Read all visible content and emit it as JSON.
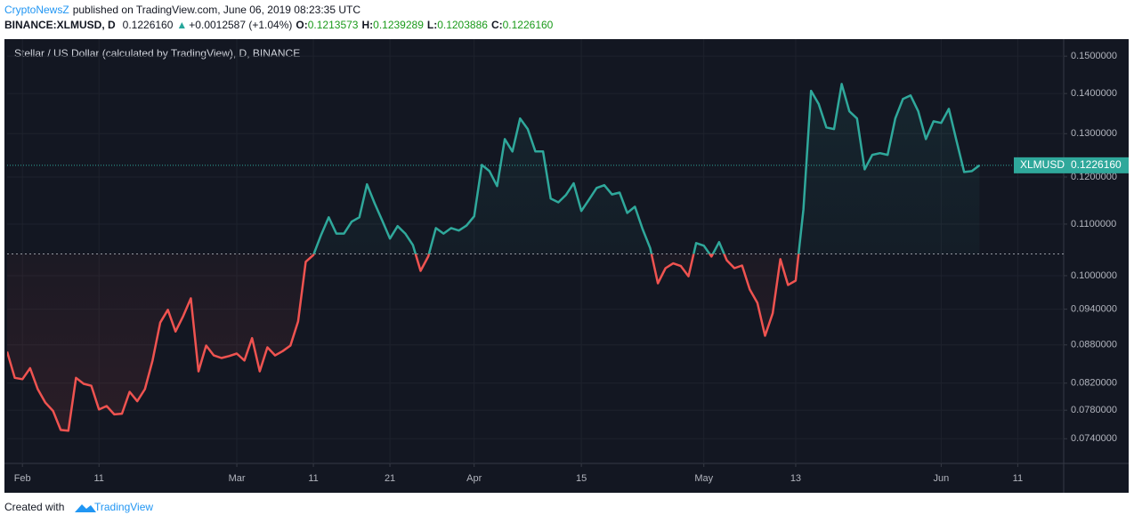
{
  "header": {
    "author": "CryptoNewsZ",
    "published": "published on TradingView.com, June 06, 2019 08:23:35 UTC",
    "symbol": "BINANCE:XLMUSD, D",
    "price": "0.1226160",
    "arrow": "▲",
    "change": "+0.0012587 (+1.04%)",
    "o_label": "O:",
    "open": "0.1213573",
    "h_label": "H:",
    "high": "0.1239289",
    "l_label": "L:",
    "low": "0.1203886",
    "c_label": "C:",
    "close": "0.1226160"
  },
  "footer": {
    "text": "Created with",
    "brand": "TradingView"
  },
  "chart_data": {
    "type": "baseline",
    "title": "Stellar / US Dollar (calculated by TradingView), D, BINANCE",
    "log_scale": true,
    "grid": true,
    "baseline": 0.1041,
    "up_color": "#2fa89b",
    "down_color": "#ef5350",
    "price_line": {
      "name": "XLMUSD",
      "value": 0.122616,
      "label": "0.1226160"
    },
    "xlim": [
      "2019-01-30",
      "2019-06-17"
    ],
    "xticks": [
      {
        "value": "2019-02-01",
        "label": "Feb"
      },
      {
        "value": "2019-02-11",
        "label": "11"
      },
      {
        "value": "2019-03-01",
        "label": "Mar"
      },
      {
        "value": "2019-03-11",
        "label": "11"
      },
      {
        "value": "2019-03-21",
        "label": "21"
      },
      {
        "value": "2019-04-01",
        "label": "Apr"
      },
      {
        "value": "2019-04-15",
        "label": "15"
      },
      {
        "value": "2019-05-01",
        "label": "May"
      },
      {
        "value": "2019-05-13",
        "label": "13"
      },
      {
        "value": "2019-06-01",
        "label": "Jun"
      },
      {
        "value": "2019-06-11",
        "label": "11"
      }
    ],
    "ylim": [
      0.0707,
      0.1548
    ],
    "yticks": [
      {
        "value": 0.074,
        "label": "0.0740000"
      },
      {
        "value": 0.078,
        "label": "0.0780000"
      },
      {
        "value": 0.082,
        "label": "0.0820000"
      },
      {
        "value": 0.088,
        "label": "0.0880000"
      },
      {
        "value": 0.094,
        "label": "0.0940000"
      },
      {
        "value": 0.1,
        "label": "0.1000000"
      },
      {
        "value": 0.11,
        "label": "0.1100000"
      },
      {
        "value": 0.12,
        "label": "0.1200000"
      },
      {
        "value": 0.13,
        "label": "0.1300000"
      },
      {
        "value": 0.14,
        "label": "0.1400000"
      },
      {
        "value": 0.15,
        "label": "0.1500000"
      }
    ],
    "x": [
      "2019-01-30",
      "2019-01-31",
      "2019-02-01",
      "2019-02-02",
      "2019-02-03",
      "2019-02-04",
      "2019-02-05",
      "2019-02-06",
      "2019-02-07",
      "2019-02-08",
      "2019-02-09",
      "2019-02-10",
      "2019-02-11",
      "2019-02-12",
      "2019-02-13",
      "2019-02-14",
      "2019-02-15",
      "2019-02-16",
      "2019-02-17",
      "2019-02-18",
      "2019-02-19",
      "2019-02-20",
      "2019-02-21",
      "2019-02-22",
      "2019-02-23",
      "2019-02-24",
      "2019-02-25",
      "2019-02-26",
      "2019-02-27",
      "2019-02-28",
      "2019-03-01",
      "2019-03-02",
      "2019-03-03",
      "2019-03-04",
      "2019-03-05",
      "2019-03-06",
      "2019-03-07",
      "2019-03-08",
      "2019-03-09",
      "2019-03-10",
      "2019-03-11",
      "2019-03-12",
      "2019-03-13",
      "2019-03-14",
      "2019-03-15",
      "2019-03-16",
      "2019-03-17",
      "2019-03-18",
      "2019-03-19",
      "2019-03-20",
      "2019-03-21",
      "2019-03-22",
      "2019-03-23",
      "2019-03-24",
      "2019-03-25",
      "2019-03-26",
      "2019-03-27",
      "2019-03-28",
      "2019-03-29",
      "2019-03-30",
      "2019-03-31",
      "2019-04-01",
      "2019-04-02",
      "2019-04-03",
      "2019-04-04",
      "2019-04-05",
      "2019-04-06",
      "2019-04-07",
      "2019-04-08",
      "2019-04-09",
      "2019-04-10",
      "2019-04-11",
      "2019-04-12",
      "2019-04-13",
      "2019-04-14",
      "2019-04-15",
      "2019-04-16",
      "2019-04-17",
      "2019-04-18",
      "2019-04-19",
      "2019-04-20",
      "2019-04-21",
      "2019-04-22",
      "2019-04-23",
      "2019-04-24",
      "2019-04-25",
      "2019-04-26",
      "2019-04-27",
      "2019-04-28",
      "2019-04-29",
      "2019-04-30",
      "2019-05-01",
      "2019-05-02",
      "2019-05-03",
      "2019-05-04",
      "2019-05-05",
      "2019-05-06",
      "2019-05-07",
      "2019-05-08",
      "2019-05-09",
      "2019-05-10",
      "2019-05-11",
      "2019-05-12",
      "2019-05-13",
      "2019-05-14",
      "2019-05-15",
      "2019-05-16",
      "2019-05-17",
      "2019-05-18",
      "2019-05-19",
      "2019-05-20",
      "2019-05-21",
      "2019-05-22",
      "2019-05-23",
      "2019-05-24",
      "2019-05-25",
      "2019-05-26",
      "2019-05-27",
      "2019-05-28",
      "2019-05-29",
      "2019-05-30",
      "2019-05-31",
      "2019-06-01",
      "2019-06-02",
      "2019-06-03",
      "2019-06-04",
      "2019-06-05",
      "2019-06-06"
    ],
    "series": [
      {
        "name": "XLMUSD",
        "values": [
          0.0869,
          0.0828,
          0.0826,
          0.0843,
          0.0811,
          0.0791,
          0.0779,
          0.0752,
          0.0751,
          0.0828,
          0.0819,
          0.0816,
          0.0781,
          0.0786,
          0.0774,
          0.0775,
          0.0807,
          0.0793,
          0.0811,
          0.0855,
          0.0917,
          0.0939,
          0.0902,
          0.0928,
          0.0959,
          0.0838,
          0.0879,
          0.0863,
          0.0859,
          0.0862,
          0.0866,
          0.0855,
          0.0891,
          0.0838,
          0.0876,
          0.0863,
          0.087,
          0.0879,
          0.0919,
          0.1026,
          0.1039,
          0.1078,
          0.1114,
          0.1081,
          0.1081,
          0.1105,
          0.1114,
          0.1184,
          0.1143,
          0.1107,
          0.1071,
          0.1096,
          0.1081,
          0.1058,
          0.1009,
          0.1036,
          0.1092,
          0.1081,
          0.1092,
          0.1087,
          0.1097,
          0.1116,
          0.1227,
          0.1213,
          0.118,
          0.1287,
          0.1258,
          0.1337,
          0.1311,
          0.1258,
          0.1258,
          0.1153,
          0.1145,
          0.1161,
          0.1186,
          0.1127,
          0.1151,
          0.1176,
          0.1182,
          0.1162,
          0.1166,
          0.1123,
          0.1136,
          0.109,
          0.1052,
          0.0986,
          0.1014,
          0.1023,
          0.1018,
          0.0999,
          0.1062,
          0.1057,
          0.1036,
          0.1064,
          0.1029,
          0.1014,
          0.1019,
          0.0975,
          0.0951,
          0.0895,
          0.0933,
          0.1031,
          0.0983,
          0.0991,
          0.113,
          0.1407,
          0.1373,
          0.1315,
          0.1311,
          0.1425,
          0.1355,
          0.1337,
          0.1217,
          0.125,
          0.1254,
          0.125,
          0.1337,
          0.1386,
          0.1395,
          0.1355,
          0.1287,
          0.133,
          0.1326,
          0.1361,
          0.1283,
          0.1211,
          0.1213,
          0.122616
        ]
      }
    ]
  }
}
